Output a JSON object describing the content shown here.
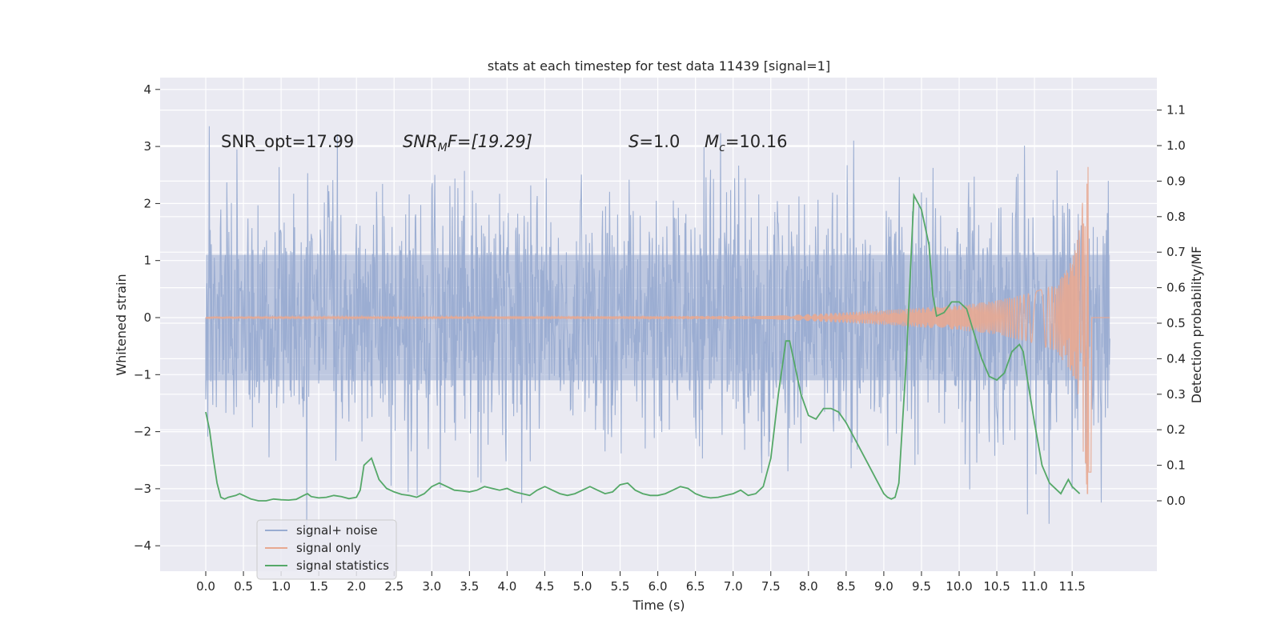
{
  "chart_data": {
    "type": "line",
    "title": "stats at each timestep for test data 11439 [signal=1]",
    "xlabel": "Time (s)",
    "ylabel": "Whitened strain",
    "y2label": "Detection probability/MF",
    "xlim": [
      -0.3,
      12.4
    ],
    "ylim": [
      -4.45,
      4.2
    ],
    "y2lim": [
      -0.195,
      1.2
    ],
    "x_ticks": [
      "0.0",
      "0.5",
      "1.0",
      "1.5",
      "2.0",
      "2.5",
      "3.0",
      "3.5",
      "4.0",
      "4.5",
      "5.0",
      "5.5",
      "6.0",
      "6.5",
      "7.0",
      "7.5",
      "8.0",
      "8.5",
      "9.0",
      "9.5",
      "10.0",
      "10.5",
      "11.0",
      "11.5"
    ],
    "y_ticks": [
      "4",
      "3",
      "2",
      "1",
      "0",
      "−1",
      "−2",
      "−3",
      "−4"
    ],
    "y2_ticks": [
      "1.1",
      "1.0",
      "0.9",
      "0.8",
      "0.7",
      "0.6",
      "0.5",
      "0.4",
      "0.3",
      "0.2",
      "0.1",
      "0.0"
    ],
    "grid": true,
    "annotations": {
      "snr_opt": "SNR_opt=17.99",
      "snr_mf_label": "SNR",
      "snr_mf_sub": "M",
      "snr_mf_rest": "F=[19.29]",
      "s_label": "S",
      "s_rest": "=1.0",
      "mc_label": "M",
      "mc_sub": "c",
      "mc_rest": "=10.16"
    },
    "series": [
      {
        "name": "signal+ noise",
        "color": "#99acd1",
        "axis": "left",
        "description": "whitened strain noise with signal, roughly gaussian, sigma approx 1",
        "x_range": [
          0.0,
          12.0
        ],
        "approx_envelope": [
          -4.0,
          3.8
        ]
      },
      {
        "name": "signal only",
        "color": "#e8a991",
        "axis": "left",
        "description": "chirp signal with growing amplitude, merger near 11.7 s",
        "x_range": [
          0.0,
          11.75
        ],
        "amplitude_points": [
          [
            0.0,
            0.01
          ],
          [
            7.5,
            0.03
          ],
          [
            8.0,
            0.06
          ],
          [
            9.0,
            0.13
          ],
          [
            10.0,
            0.22
          ],
          [
            10.5,
            0.3
          ],
          [
            11.0,
            0.45
          ],
          [
            11.3,
            0.6
          ],
          [
            11.5,
            1.0
          ],
          [
            11.6,
            1.6
          ],
          [
            11.65,
            2.5
          ],
          [
            11.7,
            3.1
          ]
        ]
      },
      {
        "name": "signal statistics",
        "color": "#55a868",
        "axis": "right",
        "points": [
          [
            0.0,
            0.25
          ],
          [
            0.05,
            0.2
          ],
          [
            0.1,
            0.12
          ],
          [
            0.15,
            0.05
          ],
          [
            0.2,
            0.01
          ],
          [
            0.25,
            0.005
          ],
          [
            0.3,
            0.01
          ],
          [
            0.4,
            0.015
          ],
          [
            0.45,
            0.02
          ],
          [
            0.5,
            0.015
          ],
          [
            0.6,
            0.005
          ],
          [
            0.7,
            0.0
          ],
          [
            0.8,
            0.0
          ],
          [
            0.9,
            0.005
          ],
          [
            1.0,
            0.003
          ],
          [
            1.1,
            0.002
          ],
          [
            1.2,
            0.004
          ],
          [
            1.3,
            0.015
          ],
          [
            1.35,
            0.02
          ],
          [
            1.4,
            0.012
          ],
          [
            1.5,
            0.008
          ],
          [
            1.6,
            0.01
          ],
          [
            1.7,
            0.015
          ],
          [
            1.8,
            0.012
          ],
          [
            1.9,
            0.006
          ],
          [
            2.0,
            0.01
          ],
          [
            2.05,
            0.03
          ],
          [
            2.1,
            0.1
          ],
          [
            2.2,
            0.12
          ],
          [
            2.3,
            0.06
          ],
          [
            2.4,
            0.035
          ],
          [
            2.5,
            0.025
          ],
          [
            2.6,
            0.018
          ],
          [
            2.7,
            0.015
          ],
          [
            2.8,
            0.01
          ],
          [
            2.9,
            0.02
          ],
          [
            3.0,
            0.04
          ],
          [
            3.1,
            0.05
          ],
          [
            3.2,
            0.04
          ],
          [
            3.3,
            0.03
          ],
          [
            3.4,
            0.028
          ],
          [
            3.5,
            0.025
          ],
          [
            3.6,
            0.03
          ],
          [
            3.7,
            0.04
          ],
          [
            3.8,
            0.035
          ],
          [
            3.9,
            0.03
          ],
          [
            4.0,
            0.035
          ],
          [
            4.1,
            0.025
          ],
          [
            4.2,
            0.02
          ],
          [
            4.3,
            0.015
          ],
          [
            4.4,
            0.03
          ],
          [
            4.5,
            0.04
          ],
          [
            4.6,
            0.03
          ],
          [
            4.7,
            0.02
          ],
          [
            4.8,
            0.015
          ],
          [
            4.9,
            0.02
          ],
          [
            5.0,
            0.03
          ],
          [
            5.1,
            0.04
          ],
          [
            5.2,
            0.03
          ],
          [
            5.3,
            0.02
          ],
          [
            5.4,
            0.025
          ],
          [
            5.5,
            0.045
          ],
          [
            5.6,
            0.05
          ],
          [
            5.7,
            0.03
          ],
          [
            5.8,
            0.02
          ],
          [
            5.9,
            0.015
          ],
          [
            6.0,
            0.015
          ],
          [
            6.1,
            0.02
          ],
          [
            6.2,
            0.03
          ],
          [
            6.3,
            0.04
          ],
          [
            6.4,
            0.035
          ],
          [
            6.5,
            0.02
          ],
          [
            6.6,
            0.012
          ],
          [
            6.7,
            0.008
          ],
          [
            6.8,
            0.01
          ],
          [
            6.9,
            0.015
          ],
          [
            7.0,
            0.02
          ],
          [
            7.1,
            0.03
          ],
          [
            7.2,
            0.015
          ],
          [
            7.3,
            0.02
          ],
          [
            7.4,
            0.04
          ],
          [
            7.5,
            0.12
          ],
          [
            7.6,
            0.3
          ],
          [
            7.7,
            0.45
          ],
          [
            7.75,
            0.45
          ],
          [
            7.8,
            0.4
          ],
          [
            7.9,
            0.3
          ],
          [
            8.0,
            0.24
          ],
          [
            8.1,
            0.23
          ],
          [
            8.2,
            0.26
          ],
          [
            8.3,
            0.26
          ],
          [
            8.4,
            0.25
          ],
          [
            8.5,
            0.22
          ],
          [
            8.6,
            0.18
          ],
          [
            8.7,
            0.14
          ],
          [
            8.8,
            0.1
          ],
          [
            8.9,
            0.06
          ],
          [
            9.0,
            0.02
          ],
          [
            9.05,
            0.01
          ],
          [
            9.1,
            0.005
          ],
          [
            9.15,
            0.01
          ],
          [
            9.2,
            0.05
          ],
          [
            9.3,
            0.4
          ],
          [
            9.4,
            0.86
          ],
          [
            9.5,
            0.82
          ],
          [
            9.6,
            0.72
          ],
          [
            9.65,
            0.58
          ],
          [
            9.7,
            0.52
          ],
          [
            9.8,
            0.53
          ],
          [
            9.9,
            0.56
          ],
          [
            10.0,
            0.56
          ],
          [
            10.1,
            0.54
          ],
          [
            10.2,
            0.47
          ],
          [
            10.3,
            0.4
          ],
          [
            10.4,
            0.35
          ],
          [
            10.5,
            0.34
          ],
          [
            10.6,
            0.36
          ],
          [
            10.7,
            0.42
          ],
          [
            10.8,
            0.44
          ],
          [
            10.85,
            0.42
          ],
          [
            10.9,
            0.35
          ],
          [
            11.0,
            0.22
          ],
          [
            11.1,
            0.1
          ],
          [
            11.2,
            0.05
          ],
          [
            11.3,
            0.03
          ],
          [
            11.35,
            0.02
          ],
          [
            11.4,
            0.04
          ],
          [
            11.45,
            0.06
          ],
          [
            11.5,
            0.04
          ],
          [
            11.55,
            0.03
          ],
          [
            11.6,
            0.02
          ]
        ]
      }
    ],
    "legend": [
      "signal+ noise",
      "signal only",
      "signal statistics"
    ],
    "legend_position": "lower-left"
  }
}
